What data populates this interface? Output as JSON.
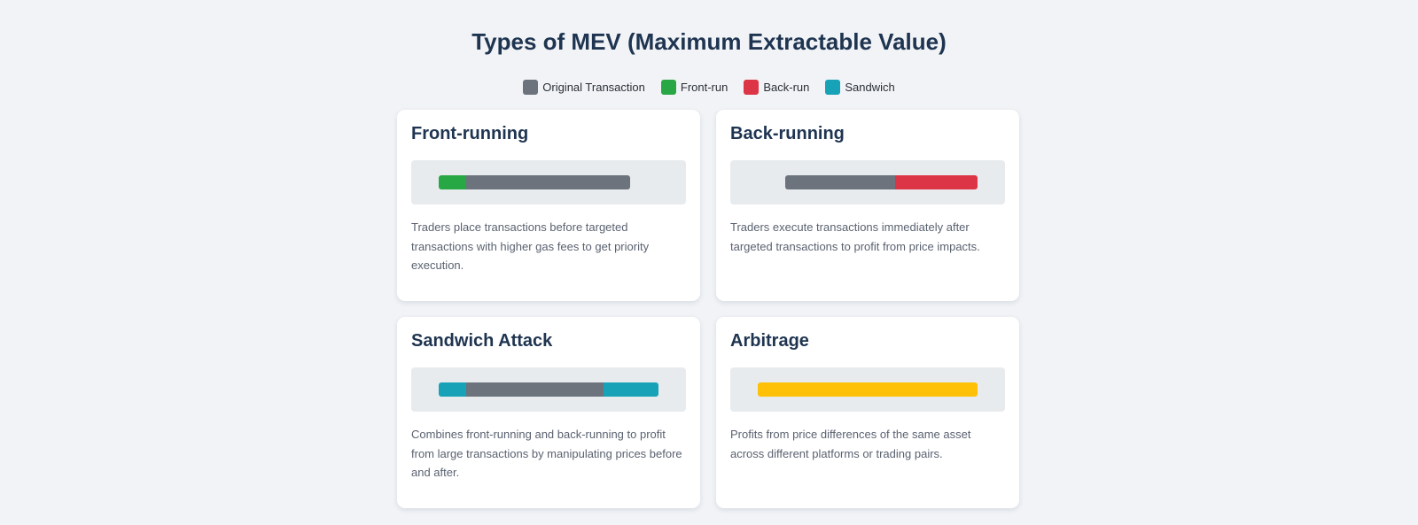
{
  "title": "Types of MEV (Maximum Extractable Value)",
  "legend": [
    {
      "label": "Original Transaction",
      "color": "#6c737d"
    },
    {
      "label": "Front-run",
      "color": "#28a745"
    },
    {
      "label": "Back-run",
      "color": "#dc3545"
    },
    {
      "label": "Sandwich",
      "color": "#17a2b8"
    }
  ],
  "colors": {
    "original": "#6c737d",
    "front_run": "#28a745",
    "back_run": "#dc3545",
    "sandwich": "#17a2b8",
    "arbitrage": "#ffc107"
  },
  "cards": [
    {
      "title": "Front-running",
      "description": "Traders place transactions before targeted transactions with higher gas fees to get priority execution."
    },
    {
      "title": "Back-running",
      "description": "Traders execute transactions immediately after targeted transactions to profit from price impacts."
    },
    {
      "title": "Sandwich Attack",
      "description": "Combines front-running and back-running to profit from large transactions by manipulating prices before and after."
    },
    {
      "title": "Arbitrage",
      "description": "Profits from price differences of the same asset across different platforms or trading pairs."
    }
  ]
}
